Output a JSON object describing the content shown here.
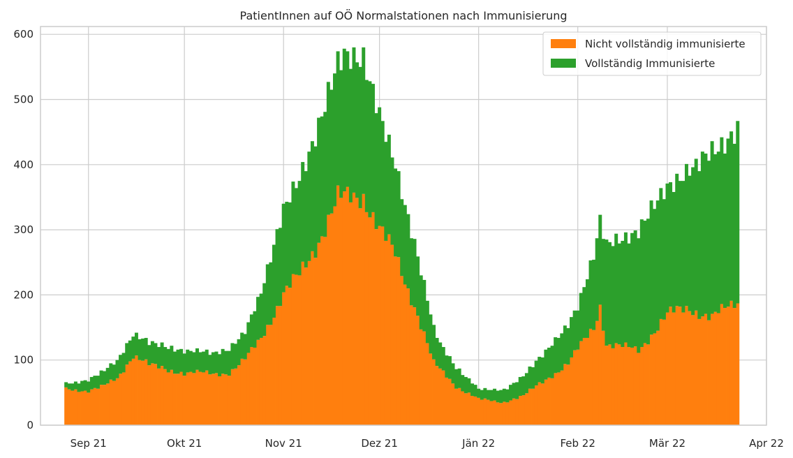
{
  "chart_data": {
    "type": "bar",
    "stacked": true,
    "title": "PatientInnen auf OÖ Normalstationen nach Immunisierung",
    "xlabel": "",
    "ylabel": "",
    "x_start": "2021-08-25",
    "x_end": "2022-03-23",
    "xlim": [
      "2021-08-17",
      "2022-04-01"
    ],
    "ylim": [
      0,
      612
    ],
    "y_ticks": [
      0,
      100,
      200,
      300,
      400,
      500,
      600
    ],
    "x_ticks": [
      {
        "date": "2021-09-01",
        "label": "Sep 21"
      },
      {
        "date": "2021-10-01",
        "label": "Okt 21"
      },
      {
        "date": "2021-11-01",
        "label": "Nov 21"
      },
      {
        "date": "2021-12-01",
        "label": "Dez 21"
      },
      {
        "date": "2022-01-01",
        "label": "Jän 22"
      },
      {
        "date": "2022-02-01",
        "label": "Feb 22"
      },
      {
        "date": "2022-03-01",
        "label": "Mär 22"
      },
      {
        "date": "2022-04-01",
        "label": "Apr 22"
      }
    ],
    "grid": true,
    "legend_position": "top-right",
    "series": [
      {
        "name": "Nicht vollständig immunisierte",
        "color": "#ff7f0e",
        "anchors": [
          [
            "2021-08-25",
            56
          ],
          [
            "2021-09-01",
            53
          ],
          [
            "2021-09-05",
            58
          ],
          [
            "2021-09-10",
            72
          ],
          [
            "2021-09-15",
            108
          ],
          [
            "2021-09-20",
            92
          ],
          [
            "2021-10-01",
            80
          ],
          [
            "2021-10-10",
            80
          ],
          [
            "2021-10-15",
            80
          ],
          [
            "2021-10-20",
            100
          ],
          [
            "2021-10-25",
            135
          ],
          [
            "2021-11-01",
            200
          ],
          [
            "2021-11-06",
            230
          ],
          [
            "2021-11-12",
            285
          ],
          [
            "2021-11-18",
            345
          ],
          [
            "2021-11-26",
            355
          ],
          [
            "2021-12-01",
            300
          ],
          [
            "2021-12-06",
            260
          ],
          [
            "2021-12-12",
            185
          ],
          [
            "2021-12-18",
            95
          ],
          [
            "2021-12-25",
            60
          ],
          [
            "2022-01-01",
            40
          ],
          [
            "2022-01-08",
            35
          ],
          [
            "2022-01-15",
            45
          ],
          [
            "2022-01-22",
            70
          ],
          [
            "2022-01-29",
            95
          ],
          [
            "2022-02-06",
            150
          ],
          [
            "2022-02-08",
            185
          ],
          [
            "2022-02-10",
            125
          ],
          [
            "2022-02-20",
            115
          ],
          [
            "2022-03-01",
            170
          ],
          [
            "2022-03-08",
            180
          ],
          [
            "2022-03-15",
            165
          ],
          [
            "2022-03-23",
            190
          ]
        ]
      },
      {
        "name": "Vollständig Immunisierte",
        "color": "#2ca02c",
        "anchors": [
          [
            "2021-08-25",
            8
          ],
          [
            "2021-09-05",
            22
          ],
          [
            "2021-09-15",
            33
          ],
          [
            "2021-09-25",
            35
          ],
          [
            "2021-10-10",
            32
          ],
          [
            "2021-10-20",
            42
          ],
          [
            "2021-10-25",
            70
          ],
          [
            "2021-11-01",
            130
          ],
          [
            "2021-11-10",
            165
          ],
          [
            "2021-11-20",
            220
          ],
          [
            "2021-11-26",
            210
          ],
          [
            "2021-12-01",
            175
          ],
          [
            "2021-12-10",
            110
          ],
          [
            "2021-12-20",
            40
          ],
          [
            "2022-01-01",
            15
          ],
          [
            "2022-01-10",
            20
          ],
          [
            "2022-01-20",
            40
          ],
          [
            "2022-02-01",
            65
          ],
          [
            "2022-02-10",
            150
          ],
          [
            "2022-02-20",
            185
          ],
          [
            "2022-03-01",
            195
          ],
          [
            "2022-03-10",
            220
          ],
          [
            "2022-03-15",
            255
          ],
          [
            "2022-03-23",
            265
          ]
        ]
      }
    ]
  }
}
